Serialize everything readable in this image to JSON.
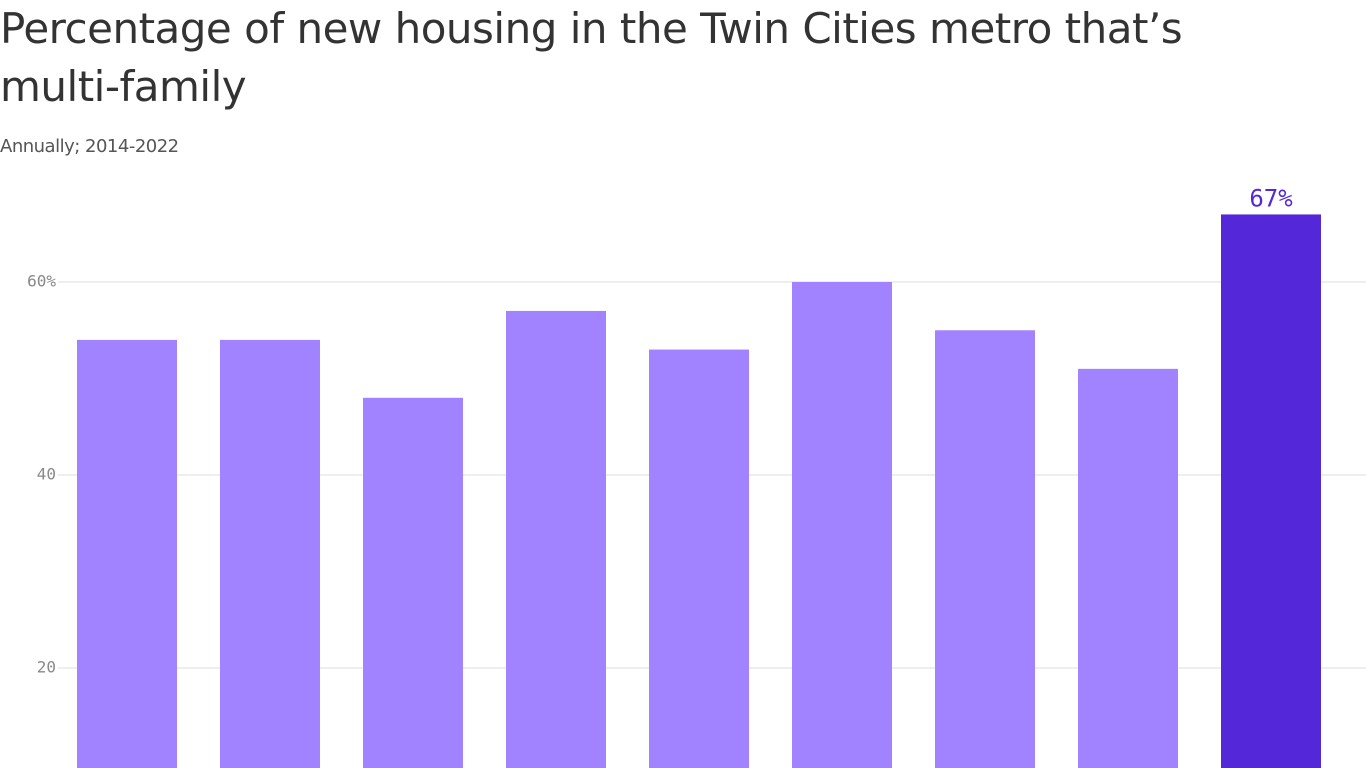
{
  "chart_data": {
    "type": "bar",
    "title": "Percentage of new housing in the Twin Cities metro that’s multi-family",
    "subtitle": "Annually; 2014-2022",
    "categories": [
      null,
      null,
      null,
      null,
      null,
      null,
      null,
      null,
      null
    ],
    "values": [
      54,
      54,
      48,
      57,
      53,
      60,
      55,
      51,
      67
    ],
    "value_labels": [
      null,
      null,
      null,
      null,
      null,
      null,
      null,
      null,
      "67%"
    ],
    "colors": [
      "#a283ff",
      "#a283ff",
      "#a283ff",
      "#a283ff",
      "#a283ff",
      "#a283ff",
      "#a283ff",
      "#a283ff",
      "#5428d9"
    ],
    "ylim": [
      10,
      70
    ],
    "yticks": [
      20,
      40,
      {
        "value": 60,
        "label": "60%"
      }
    ],
    "grid": true
  }
}
